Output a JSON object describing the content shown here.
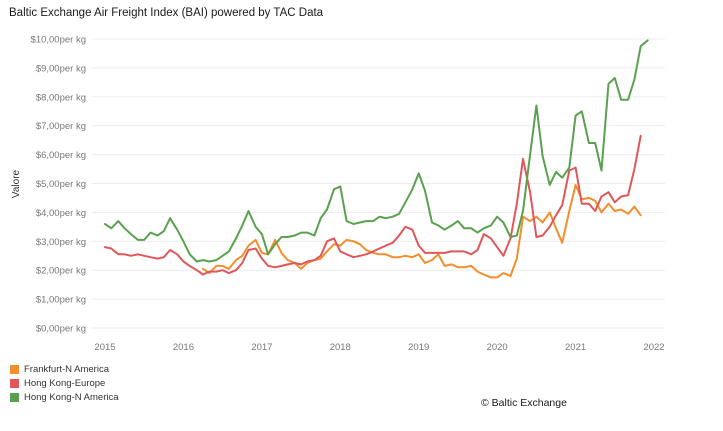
{
  "chart_data": {
    "type": "line",
    "title": "Baltic Exchange Air Freight Index (BAI) powered by TAC Data",
    "xlabel": "",
    "ylabel": "Valore",
    "x_ticks": [
      "2015",
      "2016",
      "2017",
      "2018",
      "2019",
      "2020",
      "2021",
      "2022"
    ],
    "y_ticks": [
      "$0,00per kg",
      "$1,00per kg",
      "$2,00per kg",
      "$3,00per kg",
      "$4,00per kg",
      "$5,00per kg",
      "$6,00per kg",
      "$7,00per kg",
      "$8,00per kg",
      "$9,00per kg",
      "$10,00per kg"
    ],
    "xlim": [
      2015,
      2022
    ],
    "ylim": [
      0,
      10
    ],
    "grid": "horizontal",
    "series": [
      {
        "name": "Frankfurt-N America",
        "color": "#f28e2b",
        "points": [
          [
            2016.25,
            2.05
          ],
          [
            2016.33,
            1.9
          ],
          [
            2016.42,
            2.15
          ],
          [
            2016.5,
            2.15
          ],
          [
            2016.58,
            2.05
          ],
          [
            2016.67,
            2.35
          ],
          [
            2016.75,
            2.5
          ],
          [
            2016.83,
            2.85
          ],
          [
            2016.92,
            3.05
          ],
          [
            2017.0,
            2.6
          ],
          [
            2017.08,
            2.55
          ],
          [
            2017.17,
            3.05
          ],
          [
            2017.25,
            2.6
          ],
          [
            2017.33,
            2.35
          ],
          [
            2017.42,
            2.25
          ],
          [
            2017.5,
            2.05
          ],
          [
            2017.58,
            2.25
          ],
          [
            2017.67,
            2.35
          ],
          [
            2017.75,
            2.4
          ],
          [
            2017.83,
            2.65
          ],
          [
            2017.92,
            2.9
          ],
          [
            2018.0,
            2.85
          ],
          [
            2018.08,
            3.05
          ],
          [
            2018.17,
            3.0
          ],
          [
            2018.25,
            2.9
          ],
          [
            2018.33,
            2.7
          ],
          [
            2018.42,
            2.6
          ],
          [
            2018.5,
            2.55
          ],
          [
            2018.58,
            2.55
          ],
          [
            2018.67,
            2.45
          ],
          [
            2018.75,
            2.45
          ],
          [
            2018.83,
            2.5
          ],
          [
            2018.92,
            2.45
          ],
          [
            2019.0,
            2.55
          ],
          [
            2019.08,
            2.25
          ],
          [
            2019.17,
            2.35
          ],
          [
            2019.25,
            2.55
          ],
          [
            2019.33,
            2.15
          ],
          [
            2019.42,
            2.2
          ],
          [
            2019.5,
            2.1
          ],
          [
            2019.58,
            2.1
          ],
          [
            2019.67,
            2.15
          ],
          [
            2019.75,
            1.95
          ],
          [
            2019.83,
            1.85
          ],
          [
            2019.92,
            1.75
          ],
          [
            2020.0,
            1.75
          ],
          [
            2020.08,
            1.9
          ],
          [
            2020.17,
            1.8
          ],
          [
            2020.25,
            2.4
          ],
          [
            2020.33,
            3.85
          ],
          [
            2020.42,
            3.7
          ],
          [
            2020.5,
            3.85
          ],
          [
            2020.58,
            3.65
          ],
          [
            2020.67,
            4.0
          ],
          [
            2020.75,
            3.45
          ],
          [
            2020.83,
            2.95
          ],
          [
            2020.92,
            4.05
          ],
          [
            2021.0,
            4.95
          ],
          [
            2021.08,
            4.45
          ],
          [
            2021.17,
            4.5
          ],
          [
            2021.25,
            4.4
          ],
          [
            2021.33,
            4.0
          ],
          [
            2021.42,
            4.3
          ],
          [
            2021.5,
            4.05
          ],
          [
            2021.58,
            4.1
          ],
          [
            2021.67,
            3.95
          ],
          [
            2021.75,
            4.2
          ],
          [
            2021.83,
            3.9
          ]
        ]
      },
      {
        "name": "Hong Kong-Europe",
        "color": "#e15759",
        "points": [
          [
            2015.0,
            2.8
          ],
          [
            2015.08,
            2.75
          ],
          [
            2015.17,
            2.55
          ],
          [
            2015.25,
            2.55
          ],
          [
            2015.33,
            2.5
          ],
          [
            2015.42,
            2.55
          ],
          [
            2015.5,
            2.5
          ],
          [
            2015.58,
            2.45
          ],
          [
            2015.67,
            2.4
          ],
          [
            2015.75,
            2.45
          ],
          [
            2015.83,
            2.7
          ],
          [
            2015.92,
            2.55
          ],
          [
            2016.0,
            2.3
          ],
          [
            2016.08,
            2.15
          ],
          [
            2016.17,
            2.0
          ],
          [
            2016.25,
            1.85
          ],
          [
            2016.33,
            1.95
          ],
          [
            2016.42,
            1.95
          ],
          [
            2016.5,
            2.0
          ],
          [
            2016.58,
            1.9
          ],
          [
            2016.67,
            2.0
          ],
          [
            2016.75,
            2.25
          ],
          [
            2016.83,
            2.7
          ],
          [
            2016.92,
            2.75
          ],
          [
            2017.0,
            2.4
          ],
          [
            2017.08,
            2.15
          ],
          [
            2017.17,
            2.1
          ],
          [
            2017.25,
            2.15
          ],
          [
            2017.33,
            2.2
          ],
          [
            2017.42,
            2.25
          ],
          [
            2017.5,
            2.2
          ],
          [
            2017.58,
            2.3
          ],
          [
            2017.67,
            2.35
          ],
          [
            2017.75,
            2.5
          ],
          [
            2017.83,
            3.0
          ],
          [
            2017.92,
            3.1
          ],
          [
            2018.0,
            2.65
          ],
          [
            2018.08,
            2.55
          ],
          [
            2018.17,
            2.45
          ],
          [
            2018.25,
            2.5
          ],
          [
            2018.33,
            2.55
          ],
          [
            2018.42,
            2.65
          ],
          [
            2018.5,
            2.75
          ],
          [
            2018.58,
            2.85
          ],
          [
            2018.67,
            2.95
          ],
          [
            2018.75,
            3.2
          ],
          [
            2018.83,
            3.5
          ],
          [
            2018.92,
            3.4
          ],
          [
            2019.0,
            2.85
          ],
          [
            2019.08,
            2.6
          ],
          [
            2019.17,
            2.6
          ],
          [
            2019.25,
            2.6
          ],
          [
            2019.33,
            2.6
          ],
          [
            2019.42,
            2.65
          ],
          [
            2019.5,
            2.65
          ],
          [
            2019.58,
            2.65
          ],
          [
            2019.67,
            2.55
          ],
          [
            2019.75,
            2.7
          ],
          [
            2019.83,
            3.25
          ],
          [
            2019.92,
            3.1
          ],
          [
            2020.0,
            2.8
          ],
          [
            2020.08,
            2.5
          ],
          [
            2020.17,
            3.1
          ],
          [
            2020.25,
            4.3
          ],
          [
            2020.33,
            5.85
          ],
          [
            2020.42,
            4.7
          ],
          [
            2020.5,
            3.15
          ],
          [
            2020.58,
            3.2
          ],
          [
            2020.67,
            3.5
          ],
          [
            2020.75,
            3.9
          ],
          [
            2020.83,
            4.25
          ],
          [
            2020.92,
            5.45
          ],
          [
            2021.0,
            5.55
          ],
          [
            2021.08,
            4.3
          ],
          [
            2021.17,
            4.3
          ],
          [
            2021.25,
            4.05
          ],
          [
            2021.33,
            4.55
          ],
          [
            2021.42,
            4.7
          ],
          [
            2021.5,
            4.35
          ],
          [
            2021.58,
            4.55
          ],
          [
            2021.67,
            4.6
          ],
          [
            2021.75,
            5.5
          ],
          [
            2021.83,
            6.65
          ]
        ]
      },
      {
        "name": "Hong Kong-N America",
        "color": "#59a14f",
        "points": [
          [
            2015.0,
            3.6
          ],
          [
            2015.08,
            3.45
          ],
          [
            2015.17,
            3.7
          ],
          [
            2015.25,
            3.45
          ],
          [
            2015.33,
            3.25
          ],
          [
            2015.42,
            3.05
          ],
          [
            2015.5,
            3.05
          ],
          [
            2015.58,
            3.3
          ],
          [
            2015.67,
            3.2
          ],
          [
            2015.75,
            3.35
          ],
          [
            2015.83,
            3.8
          ],
          [
            2015.92,
            3.4
          ],
          [
            2016.0,
            3.0
          ],
          [
            2016.08,
            2.55
          ],
          [
            2016.17,
            2.3
          ],
          [
            2016.25,
            2.35
          ],
          [
            2016.33,
            2.3
          ],
          [
            2016.42,
            2.35
          ],
          [
            2016.5,
            2.5
          ],
          [
            2016.58,
            2.65
          ],
          [
            2016.67,
            3.1
          ],
          [
            2016.75,
            3.55
          ],
          [
            2016.83,
            4.05
          ],
          [
            2016.92,
            3.5
          ],
          [
            2017.0,
            3.25
          ],
          [
            2017.08,
            2.55
          ],
          [
            2017.17,
            2.9
          ],
          [
            2017.25,
            3.15
          ],
          [
            2017.33,
            3.15
          ],
          [
            2017.42,
            3.2
          ],
          [
            2017.5,
            3.3
          ],
          [
            2017.58,
            3.3
          ],
          [
            2017.67,
            3.2
          ],
          [
            2017.75,
            3.8
          ],
          [
            2017.83,
            4.1
          ],
          [
            2017.92,
            4.8
          ],
          [
            2018.0,
            4.9
          ],
          [
            2018.08,
            3.7
          ],
          [
            2018.17,
            3.6
          ],
          [
            2018.25,
            3.65
          ],
          [
            2018.33,
            3.7
          ],
          [
            2018.42,
            3.7
          ],
          [
            2018.5,
            3.85
          ],
          [
            2018.58,
            3.8
          ],
          [
            2018.67,
            3.85
          ],
          [
            2018.75,
            3.95
          ],
          [
            2018.83,
            4.35
          ],
          [
            2018.92,
            4.8
          ],
          [
            2019.0,
            5.35
          ],
          [
            2019.08,
            4.75
          ],
          [
            2019.17,
            3.65
          ],
          [
            2019.25,
            3.55
          ],
          [
            2019.33,
            3.4
          ],
          [
            2019.42,
            3.55
          ],
          [
            2019.5,
            3.7
          ],
          [
            2019.58,
            3.45
          ],
          [
            2019.67,
            3.45
          ],
          [
            2019.75,
            3.3
          ],
          [
            2019.83,
            3.45
          ],
          [
            2019.92,
            3.55
          ],
          [
            2020.0,
            3.85
          ],
          [
            2020.08,
            3.65
          ],
          [
            2020.17,
            3.15
          ],
          [
            2020.25,
            3.2
          ],
          [
            2020.33,
            4.05
          ],
          [
            2020.42,
            6.0
          ],
          [
            2020.5,
            7.7
          ],
          [
            2020.58,
            5.95
          ],
          [
            2020.67,
            4.95
          ],
          [
            2020.75,
            5.4
          ],
          [
            2020.83,
            5.2
          ],
          [
            2020.92,
            5.55
          ],
          [
            2021.0,
            7.35
          ],
          [
            2021.08,
            7.5
          ],
          [
            2021.17,
            6.4
          ],
          [
            2021.25,
            6.4
          ],
          [
            2021.33,
            5.45
          ],
          [
            2021.42,
            8.45
          ],
          [
            2021.5,
            8.65
          ],
          [
            2021.58,
            7.9
          ],
          [
            2021.67,
            7.9
          ],
          [
            2021.75,
            8.6
          ],
          [
            2021.83,
            9.75
          ],
          [
            2021.92,
            9.95
          ]
        ]
      }
    ],
    "legend_position": "bottom-left"
  },
  "copyright": "© Baltic Exchange"
}
